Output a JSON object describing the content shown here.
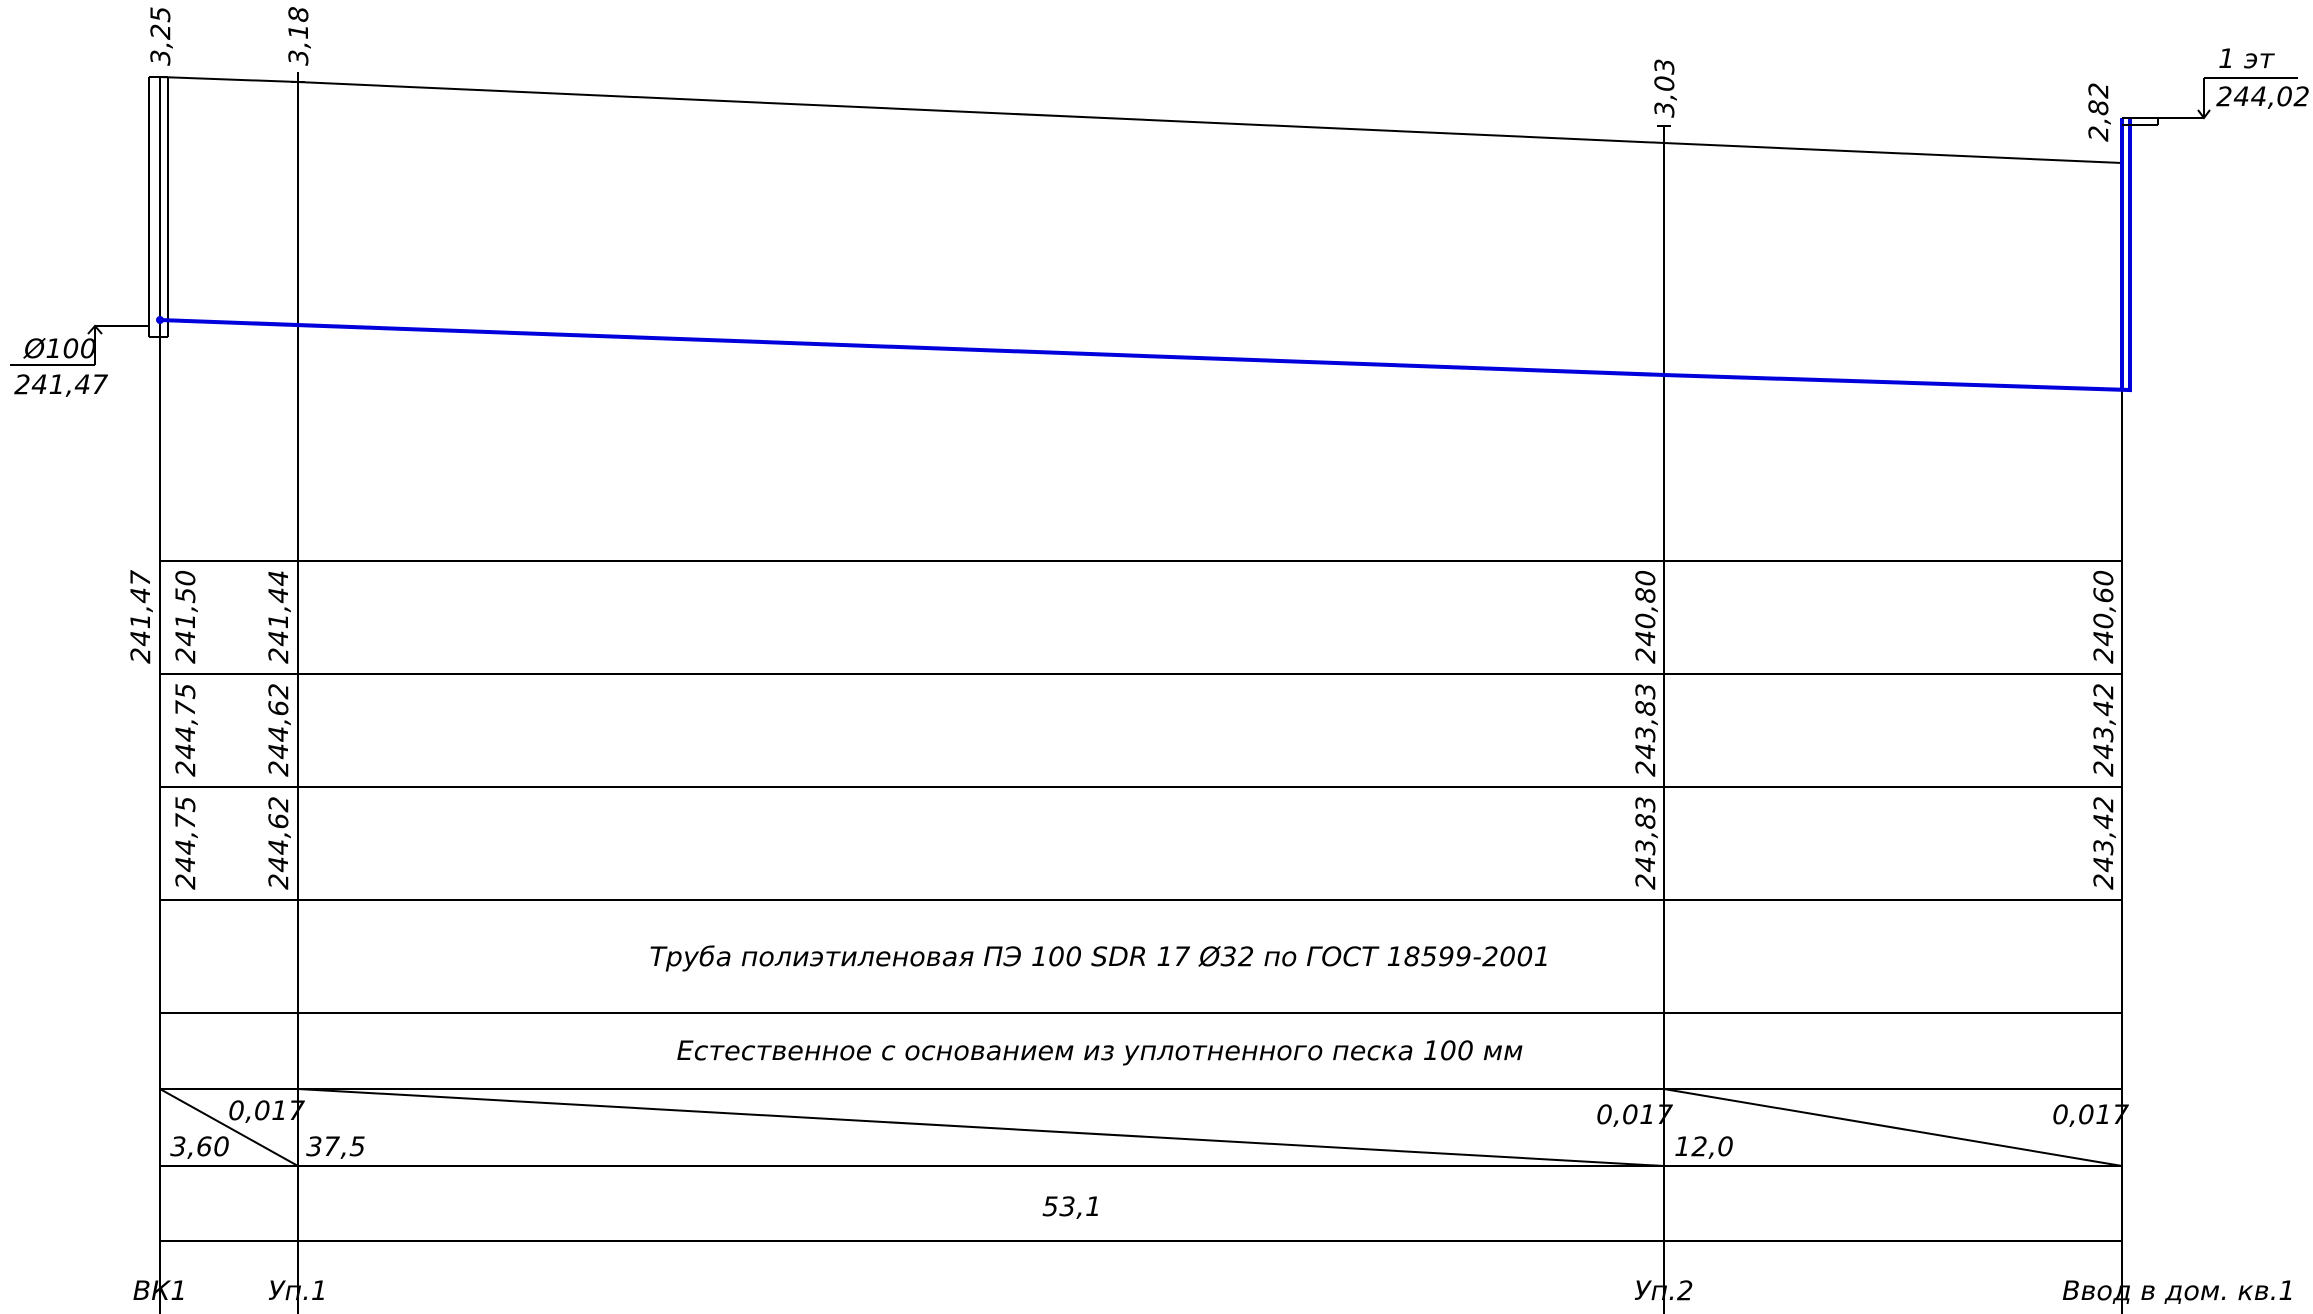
{
  "colors": {
    "pipe": "#0000dd",
    "line": "#000000",
    "background": "#ffffff"
  },
  "stations": [
    {
      "label": "ВК1",
      "depth": "3,25",
      "pipe_elev": "241,50",
      "design_ground": "244,75",
      "natural_ground": "244,75"
    },
    {
      "label": "Уп.1",
      "depth": "3,18",
      "pipe_elev": "241,44",
      "design_ground": "244,62",
      "natural_ground": "244,62"
    },
    {
      "label": "Уп.2",
      "depth": "3,03",
      "pipe_elev": "240,80",
      "design_ground": "243,83",
      "natural_ground": "243,83"
    },
    {
      "label": "Ввод в дом. кв.1",
      "depth": "2,82",
      "pipe_elev": "240,60",
      "design_ground": "243,42",
      "natural_ground": "243,42"
    }
  ],
  "well_bottom_elev": "241,47",
  "well_marker": {
    "diameter": "Ø100",
    "elevation": "241,47"
  },
  "floor_marker": {
    "floor": "1 эт",
    "elevation": "244,02"
  },
  "pipe_material": "Труба полиэтиленовая ПЭ 100 SDR 17 Ø32 по ГОСТ 18599-2001",
  "foundation": "Естественное с основанием из уплотненного песка 100 мм",
  "slope_segments": [
    {
      "slope": "0,017",
      "length": "3,60"
    },
    {
      "slope": "0,017",
      "length": "37,5"
    },
    {
      "slope": "0,017",
      "length": "12,0"
    }
  ],
  "total_length": "53,1"
}
